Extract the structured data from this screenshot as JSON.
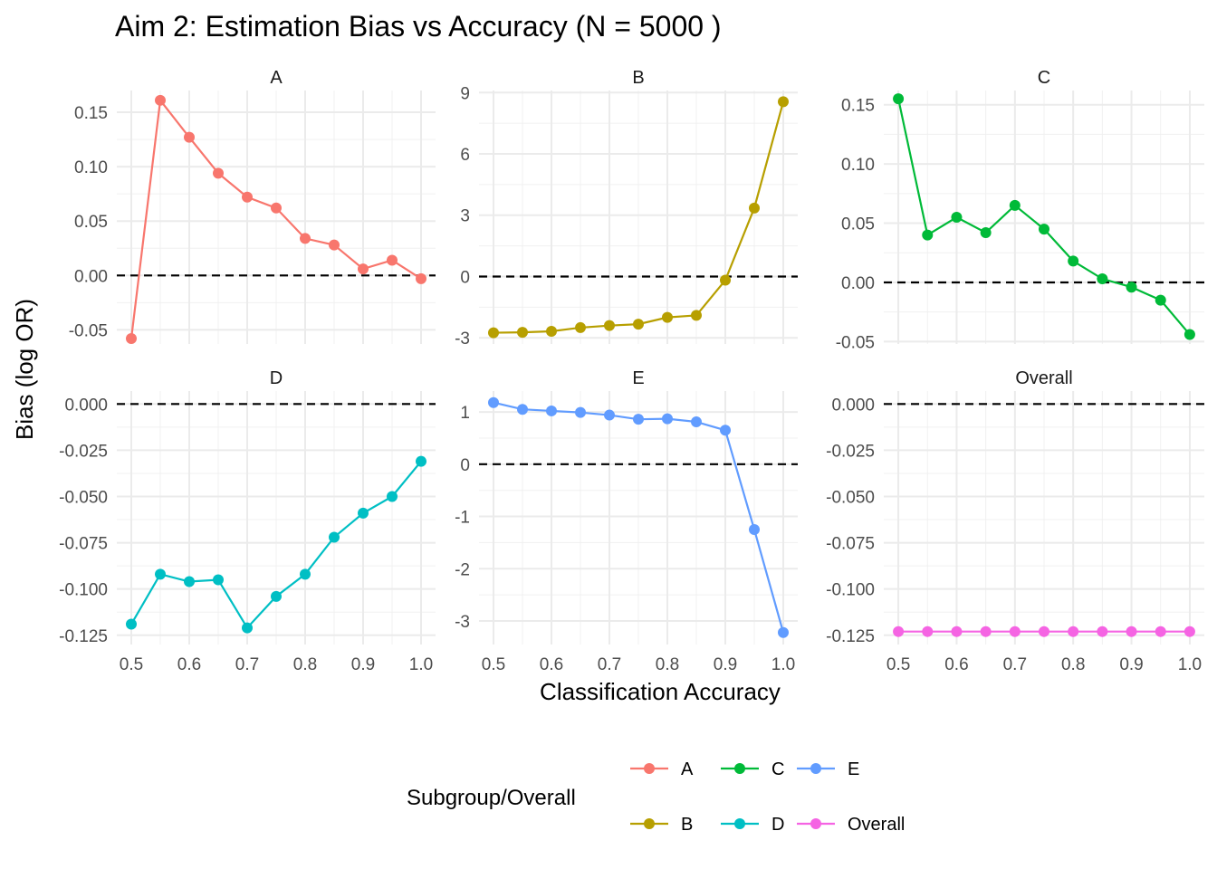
{
  "chart_data": {
    "type": "line",
    "title": "Aim 2: Estimation Bias vs Accuracy (N = 5000 )",
    "xlabel": "Classification Accuracy",
    "ylabel": "Bias (log OR)",
    "x": [
      0.5,
      0.55,
      0.6,
      0.65,
      0.7,
      0.75,
      0.8,
      0.85,
      0.9,
      0.95,
      1.0
    ],
    "reference_line": 0,
    "grid": true,
    "legend": {
      "title": "Subgroup/Overall",
      "position": "bottom",
      "entries": [
        "A",
        "B",
        "C",
        "D",
        "E",
        "Overall"
      ]
    },
    "facets": [
      {
        "name": "A",
        "color": "#F8766D",
        "ylim": [
          -0.063,
          0.17
        ],
        "yticks": [
          -0.05,
          0.0,
          0.05,
          0.1,
          0.15
        ],
        "ytick_labels": [
          "-0.05",
          "0.00",
          "0.05",
          "0.10",
          "0.15"
        ],
        "values": [
          -0.058,
          0.161,
          0.127,
          0.094,
          0.072,
          0.062,
          0.034,
          0.028,
          0.006,
          0.014,
          -0.003
        ]
      },
      {
        "name": "B",
        "color": "#B79F00",
        "ylim": [
          -3.3,
          9.1
        ],
        "yticks": [
          -3,
          0,
          3,
          6,
          9
        ],
        "ytick_labels": [
          "-3",
          "0",
          "3",
          "6",
          "9"
        ],
        "values": [
          -2.75,
          -2.73,
          -2.68,
          -2.5,
          -2.4,
          -2.33,
          -2.0,
          -1.9,
          -0.18,
          3.35,
          8.55
        ]
      },
      {
        "name": "C",
        "color": "#00BA38",
        "ylim": [
          -0.052,
          0.162
        ],
        "yticks": [
          -0.05,
          0.0,
          0.05,
          0.1,
          0.15
        ],
        "ytick_labels": [
          "-0.05",
          "0.00",
          "0.05",
          "0.10",
          "0.15"
        ],
        "values": [
          0.155,
          0.04,
          0.055,
          0.042,
          0.065,
          0.045,
          0.018,
          0.003,
          -0.004,
          -0.015,
          -0.044
        ]
      },
      {
        "name": "D",
        "color": "#00BFC4",
        "ylim": [
          -0.13,
          0.007
        ],
        "yticks": [
          -0.125,
          -0.1,
          -0.075,
          -0.05,
          -0.025,
          0.0
        ],
        "ytick_labels": [
          "-0.125",
          "-0.100",
          "-0.075",
          "-0.050",
          "-0.025",
          "0.000"
        ],
        "values": [
          -0.119,
          -0.092,
          -0.096,
          -0.095,
          -0.121,
          -0.104,
          -0.092,
          -0.072,
          -0.059,
          -0.05,
          -0.031
        ]
      },
      {
        "name": "E",
        "color": "#619CFF",
        "ylim": [
          -3.45,
          1.4
        ],
        "yticks": [
          -3,
          -2,
          -1,
          0,
          1
        ],
        "ytick_labels": [
          "-3",
          "-2",
          "-1",
          "0",
          "1"
        ],
        "values": [
          1.18,
          1.05,
          1.02,
          0.99,
          0.94,
          0.86,
          0.87,
          0.81,
          0.65,
          -1.25,
          -3.22
        ]
      },
      {
        "name": "Overall",
        "color": "#F564E3",
        "ylim": [
          -0.13,
          0.007
        ],
        "yticks": [
          -0.125,
          -0.1,
          -0.075,
          -0.05,
          -0.025,
          0.0
        ],
        "ytick_labels": [
          "-0.125",
          "-0.100",
          "-0.075",
          "-0.050",
          "-0.025",
          "0.000"
        ],
        "values": [
          -0.123,
          -0.123,
          -0.123,
          -0.123,
          -0.123,
          -0.123,
          -0.123,
          -0.123,
          -0.123,
          -0.123,
          -0.123
        ]
      }
    ],
    "xticks": [
      0.5,
      0.6,
      0.7,
      0.8,
      0.9,
      1.0
    ],
    "xtick_labels": [
      "0.5",
      "0.6",
      "0.7",
      "0.8",
      "0.9",
      "1.0"
    ]
  }
}
